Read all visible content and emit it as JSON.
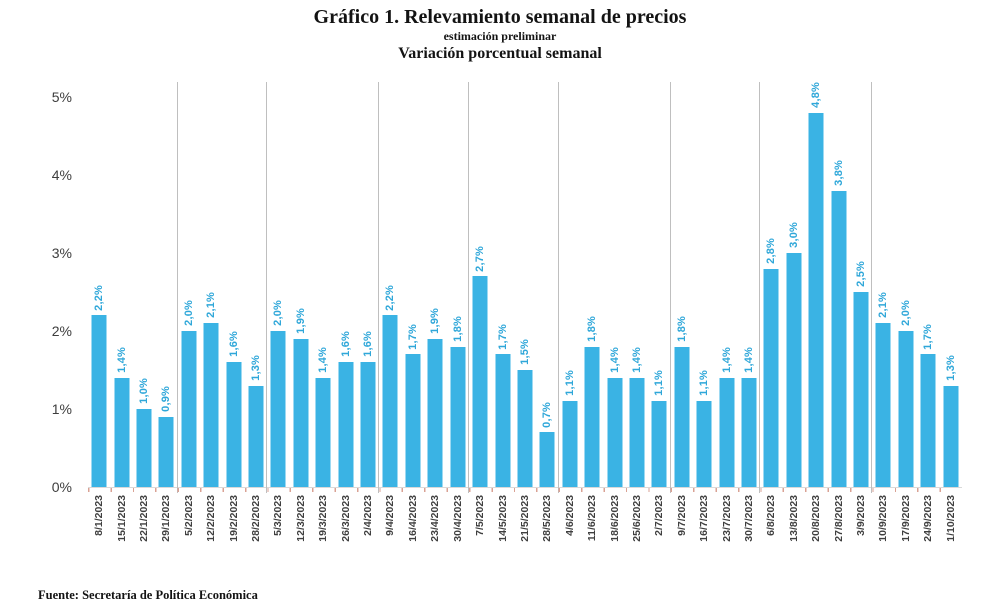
{
  "header": {
    "title": "Gráfico 1. Relevamiento semanal de precios",
    "subtitle": "estimación preliminar",
    "subtitle2": "Variación porcentual semanal"
  },
  "footer": {
    "source": "Fuente: Secretaría de Política Económica"
  },
  "colors": {
    "bar_fill": "#3ab3e4",
    "value_label": "#2fa7d9"
  },
  "chart_data": {
    "type": "bar",
    "title": "Gráfico 1. Relevamiento semanal de precios",
    "subtitle": "estimación preliminar",
    "ylabel": "Variación porcentual semanal",
    "xlabel": "",
    "ylim": [
      0,
      5
    ],
    "grid": "vertical-group-separators-only",
    "legend": "none",
    "y_tick_labels": [
      "0%",
      "1%",
      "2%",
      "3%",
      "4%",
      "5%"
    ],
    "y_tick_values": [
      0,
      1,
      2,
      3,
      4,
      5
    ],
    "group_sizes": [
      4,
      4,
      5,
      4,
      4,
      5,
      4,
      5,
      4
    ],
    "categories": [
      "8/1/2023",
      "15/1/2023",
      "22/1/2023",
      "29/1/2023",
      "5/2/2023",
      "12/2/2023",
      "19/2/2023",
      "28/2/2023",
      "5/3/2023",
      "12/3/2023",
      "19/3/2023",
      "26/3/2023",
      "2/4/2023",
      "9/4/2023",
      "16/4/2023",
      "23/4/2023",
      "30/4/2023",
      "7/5/2023",
      "14/5/2023",
      "21/5/2023",
      "28/5/2023",
      "4/6/2023",
      "11/6/2023",
      "18/6/2023",
      "25/6/2023",
      "2/7/2023",
      "9/7/2023",
      "16/7/2023",
      "23/7/2023",
      "30/7/2023",
      "6/8/2023",
      "13/8/2023",
      "20/8/2023",
      "27/8/2023",
      "3/9/2023",
      "10/9/2023",
      "17/9/2023",
      "24/9/2023",
      "1/10/2023"
    ],
    "values": [
      2.2,
      1.4,
      1.0,
      0.9,
      2.0,
      2.1,
      1.6,
      1.3,
      2.0,
      1.9,
      1.4,
      1.6,
      1.6,
      2.2,
      1.7,
      1.9,
      1.8,
      2.7,
      1.7,
      1.5,
      0.7,
      1.1,
      1.8,
      1.4,
      1.4,
      1.1,
      1.8,
      1.1,
      1.4,
      1.4,
      2.8,
      3.0,
      4.8,
      3.8,
      2.5,
      2.1,
      2.0,
      1.7,
      1.3
    ],
    "value_labels": [
      "2,2%",
      "1,4%",
      "1,0%",
      "0,9%",
      "2,0%",
      "2,1%",
      "1,6%",
      "1,3%",
      "2,0%",
      "1,9%",
      "1,4%",
      "1,6%",
      "1,6%",
      "2,2%",
      "1,7%",
      "1,9%",
      "1,8%",
      "2,7%",
      "1,7%",
      "1,5%",
      "0,7%",
      "1,1%",
      "1,8%",
      "1,4%",
      "1,4%",
      "1,1%",
      "1,8%",
      "1,1%",
      "1,4%",
      "1,4%",
      "2,8%",
      "3,0%",
      "4,8%",
      "3,8%",
      "2,5%",
      "2,1%",
      "2,0%",
      "1,7%",
      "1,3%"
    ]
  }
}
